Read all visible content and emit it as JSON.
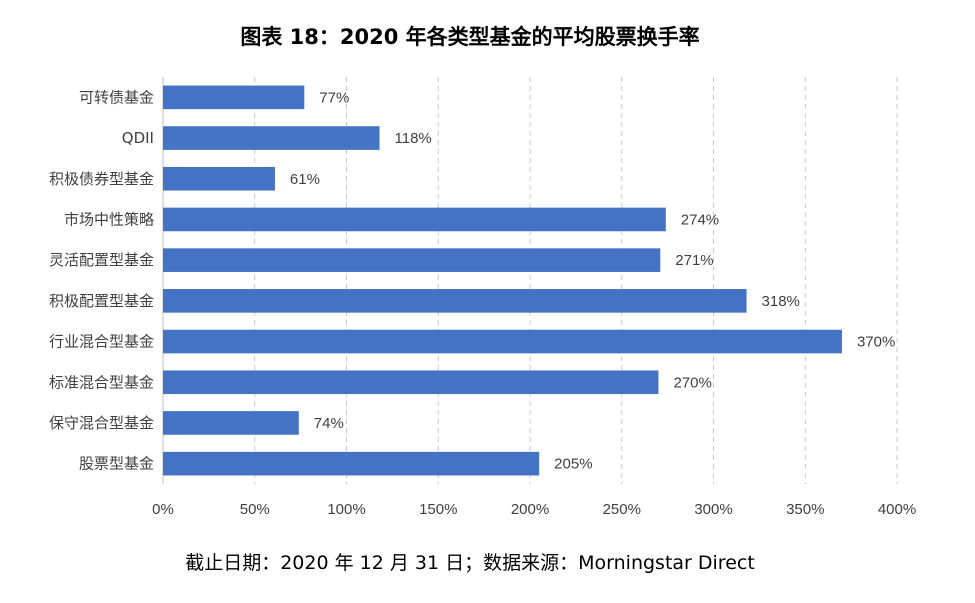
{
  "chart_data": {
    "type": "bar",
    "orientation": "horizontal",
    "title": "图表 18：2020 年各类型基金的平均股票换手率",
    "source": "截止日期：2020 年 12 月 31 日；数据来源：Morningstar Direct",
    "categories": [
      "可转债基金",
      "QDII",
      "积极债券型基金",
      "市场中性策略",
      "灵活配置型基金",
      "积极配置型基金",
      "行业混合型基金",
      "标准混合型基金",
      "保守混合型基金",
      "股票型基金"
    ],
    "values": [
      77,
      118,
      61,
      274,
      271,
      318,
      370,
      270,
      74,
      205
    ],
    "data_labels": [
      "77%",
      "118%",
      "61%",
      "274%",
      "271%",
      "318%",
      "370%",
      "270%",
      "74%",
      "205%"
    ],
    "xlim": [
      0,
      400
    ],
    "x_ticks": [
      0,
      50,
      100,
      150,
      200,
      250,
      300,
      350,
      400
    ],
    "x_tick_labels": [
      "0%",
      "50%",
      "100%",
      "150%",
      "200%",
      "250%",
      "300%",
      "350%",
      "400%"
    ],
    "xlabel": "",
    "ylabel": "",
    "grid": true,
    "grid_style": "dashed vertical",
    "legend": "none",
    "colors": {
      "bar": "#4472C4",
      "grid": "#C8C8C8",
      "text": "#404040"
    }
  }
}
